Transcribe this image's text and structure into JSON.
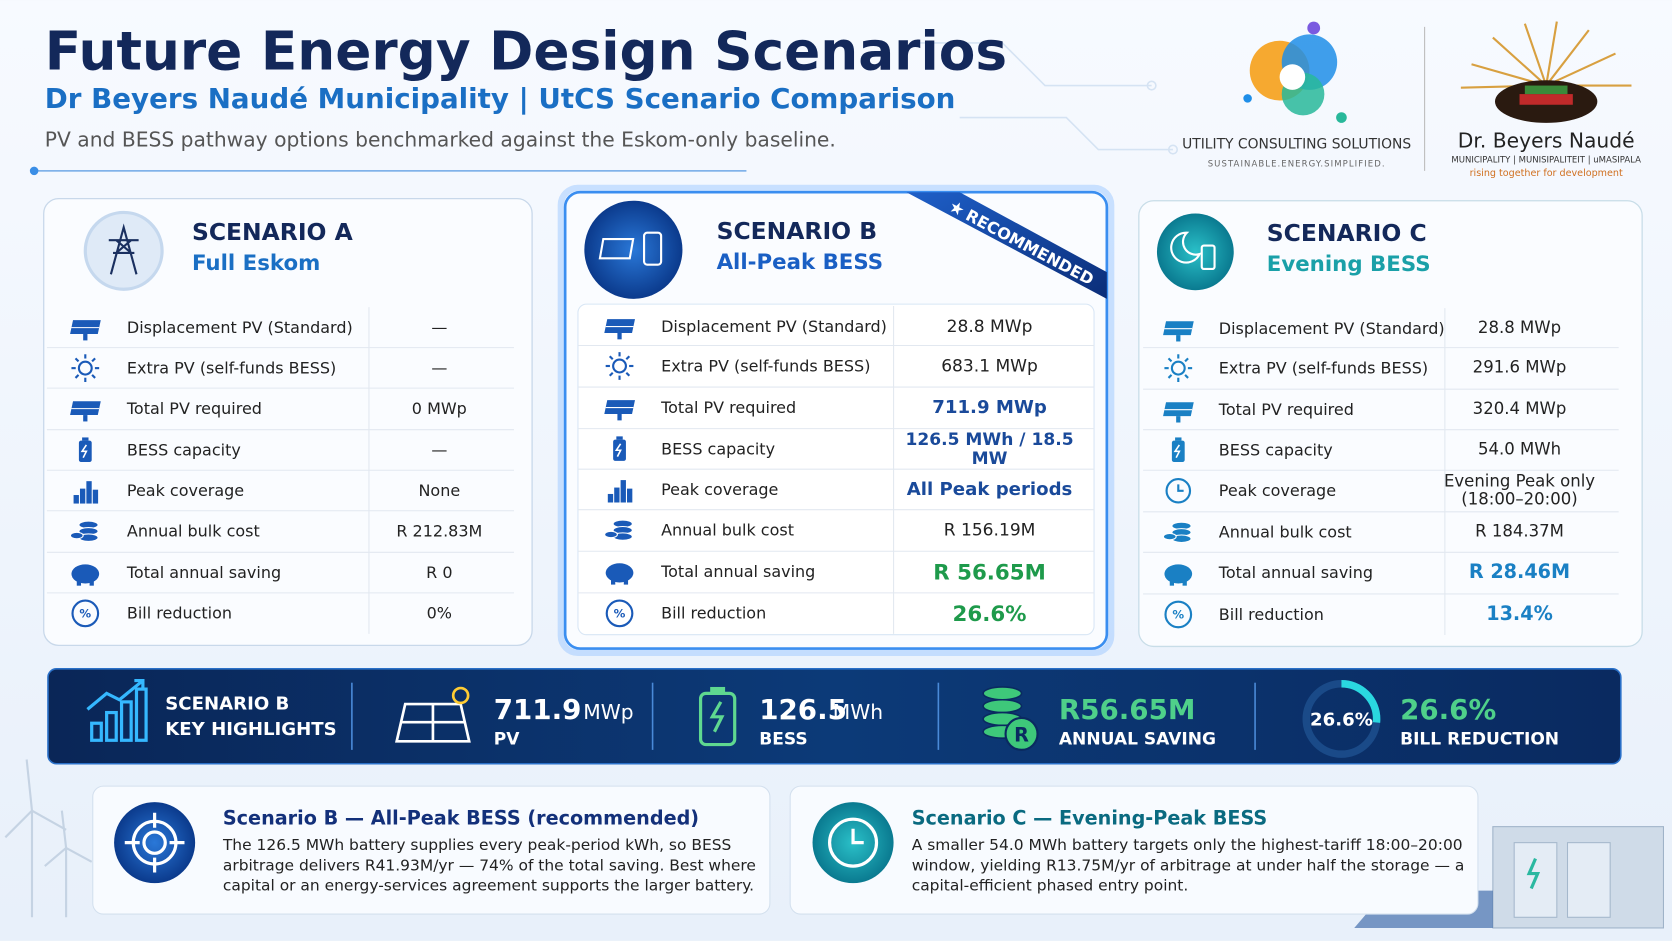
{
  "header": {
    "title": "Future Energy Design Scenarios",
    "subtitle": "Dr Beyers Naudé Municipality | UtCS Scenario Comparison",
    "description": "PV and BESS pathway options benchmarked against the Eskom-only baseline."
  },
  "logos": {
    "utcs_name": "UTILITY CONSULTING SOLUTIONS",
    "utcs_tagline": "SUSTAINABLE.ENERGY.SIMPLIFIED.",
    "municipality_name": "Dr. Beyers Naudé",
    "municipality_languages": "MUNICIPALITY | MUNISIPALITEIT | uMASIPALA",
    "municipality_motto": "rising together for development"
  },
  "scenarios": [
    {
      "label": "SCENARIO A",
      "name": "Full Eskom",
      "rows": [
        {
          "label": "Displacement PV (Standard)",
          "value": "—"
        },
        {
          "label": "Extra PV (self-funds BESS)",
          "value": "—"
        },
        {
          "label": "Total PV required",
          "value": "0 MWp"
        },
        {
          "label": "BESS capacity",
          "value": "—"
        },
        {
          "label": "Peak coverage",
          "value": "None"
        },
        {
          "label": "Annual bulk cost",
          "value": "R 212.83M"
        },
        {
          "label": "Total annual saving",
          "value": "R 0"
        },
        {
          "label": "Bill reduction",
          "value": "0%"
        }
      ]
    },
    {
      "label": "SCENARIO B",
      "name": "All-Peak BESS",
      "badge": "RECOMMENDED",
      "rows": [
        {
          "label": "Displacement PV (Standard)",
          "value": "28.8 MWp"
        },
        {
          "label": "Extra PV (self-funds BESS)",
          "value": "683.1 MWp"
        },
        {
          "label": "Total PV required",
          "value": "711.9 MWp"
        },
        {
          "label": "BESS capacity",
          "value": "126.5 MWh / 18.5 MW"
        },
        {
          "label": "Peak coverage",
          "value": "All Peak periods"
        },
        {
          "label": "Annual bulk cost",
          "value": "R 156.19M"
        },
        {
          "label": "Total annual saving",
          "value": "R 56.65M"
        },
        {
          "label": "Bill reduction",
          "value": "26.6%"
        }
      ]
    },
    {
      "label": "SCENARIO C",
      "name": "Evening BESS",
      "rows": [
        {
          "label": "Displacement PV (Standard)",
          "value": "28.8 MWp"
        },
        {
          "label": "Extra PV (self-funds BESS)",
          "value": "291.6 MWp"
        },
        {
          "label": "Total PV required",
          "value": "320.4 MWp"
        },
        {
          "label": "BESS capacity",
          "value": "54.0 MWh"
        },
        {
          "label": "Peak coverage",
          "value": "Evening Peak only (18:00–20:00)"
        },
        {
          "label": "Annual bulk cost",
          "value": "R 184.37M"
        },
        {
          "label": "Total annual saving",
          "value": "R 28.46M"
        },
        {
          "label": "Bill reduction",
          "value": "13.4%"
        }
      ]
    }
  ],
  "highlights": {
    "title_lines": [
      "SCENARIO B",
      "KEY HIGHLIGHTS"
    ],
    "pv": {
      "value": "711.9",
      "unit": "MWp",
      "label": "PV"
    },
    "bess": {
      "value": "126.5",
      "unit": "MWh",
      "label": "BESS"
    },
    "saving": {
      "value": "R56.65M",
      "label": "ANNUAL SAVING"
    },
    "bill": {
      "gauge": {
        "value": 26.6,
        "label": "26.6%"
      },
      "value": "26.6%",
      "label": "BILL REDUCTION"
    }
  },
  "notes": [
    {
      "title": "Scenario B — All-Peak BESS (recommended)",
      "text": "The 126.5 MWh battery supplies every peak-period kWh, so BESS arbitrage delivers R41.93M/yr — 74% of the total saving. Best where capital or an energy-services agreement supports the larger battery."
    },
    {
      "title": "Scenario C — Evening-Peak BESS",
      "text": "A smaller 54.0 MWh battery targets only the highest-tariff 18:00–20:00 window, yielding R13.75M/yr of arbitrage at under half the storage — a capital-efficient phased entry point."
    }
  ]
}
